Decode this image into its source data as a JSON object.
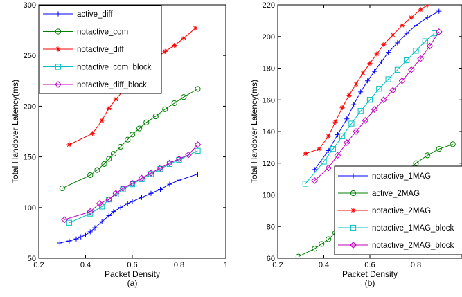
{
  "colors": {
    "blue": "#0000ff",
    "green": "#008000",
    "red": "#ff0000",
    "cyan": "#00bfbf",
    "magenta": "#bf00bf"
  },
  "chart_data": [
    {
      "type": "line",
      "xlabel": "Packet Density",
      "ylabel": "Total Handover Latency(ms)",
      "caption": "(a)",
      "xlim": [
        0.2,
        1.0
      ],
      "ylim": [
        50,
        300
      ],
      "xticks": [
        "0.2",
        "0.4",
        "0.6",
        "0.8",
        "1"
      ],
      "yticks": [
        "50",
        "100",
        "150",
        "200",
        "250",
        "300"
      ],
      "legend_position": "top-left",
      "grid": false,
      "series": [
        {
          "name": "active_diff",
          "marker": "plus",
          "color": "#0000ff",
          "x": [
            0.29,
            0.33,
            0.36,
            0.38,
            0.4,
            0.42,
            0.44,
            0.47,
            0.5,
            0.52,
            0.55,
            0.58,
            0.6,
            0.64,
            0.68,
            0.72,
            0.76,
            0.8,
            0.88
          ],
          "y": [
            65,
            67,
            69,
            71,
            73,
            76,
            80,
            86,
            92,
            96,
            100,
            104,
            106,
            110,
            114,
            118,
            123,
            127,
            133
          ]
        },
        {
          "name": "notactive_com",
          "marker": "circle",
          "color": "#008000",
          "x": [
            0.3,
            0.42,
            0.45,
            0.48,
            0.5,
            0.52,
            0.55,
            0.58,
            0.6,
            0.63,
            0.66,
            0.7,
            0.74,
            0.78,
            0.82,
            0.88
          ],
          "y": [
            119,
            132,
            137,
            143,
            148,
            153,
            160,
            167,
            172,
            178,
            184,
            190,
            197,
            203,
            209,
            217
          ]
        },
        {
          "name": "notactive_diff",
          "marker": "star",
          "color": "#ff0000",
          "x": [
            0.33,
            0.43,
            0.47,
            0.5,
            0.53,
            0.56,
            0.58,
            0.6,
            0.63,
            0.66,
            0.7,
            0.74,
            0.78,
            0.82,
            0.87
          ],
          "y": [
            162,
            173,
            186,
            198,
            207,
            215,
            221,
            227,
            233,
            240,
            247,
            254,
            260,
            267,
            277
          ]
        },
        {
          "name": "notactive_com_block",
          "marker": "square",
          "color": "#00bfbf",
          "x": [
            0.33,
            0.42,
            0.47,
            0.5,
            0.53,
            0.56,
            0.6,
            0.64,
            0.68,
            0.72,
            0.76,
            0.8,
            0.88
          ],
          "y": [
            85,
            94,
            101,
            108,
            113,
            118,
            123,
            128,
            133,
            138,
            143,
            147,
            156
          ]
        },
        {
          "name": "notactive_diff_block",
          "marker": "diamond",
          "color": "#bf00bf",
          "x": [
            0.31,
            0.42,
            0.46,
            0.5,
            0.53,
            0.56,
            0.6,
            0.64,
            0.68,
            0.72,
            0.76,
            0.8,
            0.84,
            0.88
          ],
          "y": [
            88,
            96,
            104,
            108,
            114,
            119,
            124,
            129,
            134,
            139,
            144,
            148,
            152,
            162
          ]
        }
      ]
    },
    {
      "type": "line",
      "xlabel": "Packet Density",
      "ylabel": "Total Handover Latency(ms)",
      "caption": "(b)",
      "xlim": [
        0.2,
        1.0
      ],
      "ylim": [
        60,
        220
      ],
      "xticks": [
        "0.2",
        "0.4",
        "0.6",
        "0.8"
      ],
      "yticks": [
        "60",
        "80",
        "100",
        "120",
        "140",
        "160",
        "180",
        "200",
        "220"
      ],
      "legend_position": "bottom-right",
      "grid": false,
      "series": [
        {
          "name": "notactive_1MAG",
          "marker": "plus",
          "color": "#0000ff",
          "x": [
            0.36,
            0.42,
            0.46,
            0.5,
            0.53,
            0.56,
            0.59,
            0.62,
            0.65,
            0.68,
            0.72,
            0.76,
            0.8,
            0.85,
            0.9
          ],
          "y": [
            116,
            128,
            138,
            148,
            157,
            165,
            172,
            178,
            184,
            190,
            196,
            202,
            207,
            212,
            216
          ]
        },
        {
          "name": "active_2MAG",
          "marker": "circle",
          "color": "#008000",
          "x": [
            0.29,
            0.36,
            0.39,
            0.42,
            0.45,
            0.5,
            0.55,
            0.6,
            0.65,
            0.7,
            0.75,
            0.8,
            0.85,
            0.9,
            0.96
          ],
          "y": [
            61,
            66,
            69,
            72,
            76,
            82,
            87,
            92,
            98,
            106,
            114,
            120,
            125,
            129,
            132
          ]
        },
        {
          "name": "notactive_2MAG",
          "marker": "star",
          "color": "#ff0000",
          "x": [
            0.32,
            0.38,
            0.42,
            0.45,
            0.48,
            0.51,
            0.54,
            0.57,
            0.6,
            0.63,
            0.66,
            0.7,
            0.74,
            0.78,
            0.82,
            0.85
          ],
          "y": [
            126,
            129,
            137,
            146,
            155,
            163,
            170,
            177,
            183,
            189,
            195,
            201,
            207,
            212,
            217,
            220
          ]
        },
        {
          "name": "notactive_1MAG_block",
          "marker": "square",
          "color": "#00bfbf",
          "x": [
            0.32,
            0.4,
            0.44,
            0.48,
            0.52,
            0.56,
            0.6,
            0.64,
            0.68,
            0.72,
            0.76,
            0.8,
            0.84,
            0.88
          ],
          "y": [
            107,
            121,
            129,
            137,
            145,
            153,
            160,
            167,
            173,
            179,
            185,
            191,
            197,
            202
          ]
        },
        {
          "name": "notactive_2MAG_block",
          "marker": "diamond",
          "color": "#bf00bf",
          "x": [
            0.36,
            0.42,
            0.46,
            0.5,
            0.54,
            0.58,
            0.62,
            0.66,
            0.7,
            0.74,
            0.78,
            0.82,
            0.86,
            0.9
          ],
          "y": [
            109,
            117,
            125,
            133,
            140,
            147,
            154,
            160,
            166,
            172,
            179,
            186,
            194,
            203
          ]
        }
      ]
    }
  ]
}
